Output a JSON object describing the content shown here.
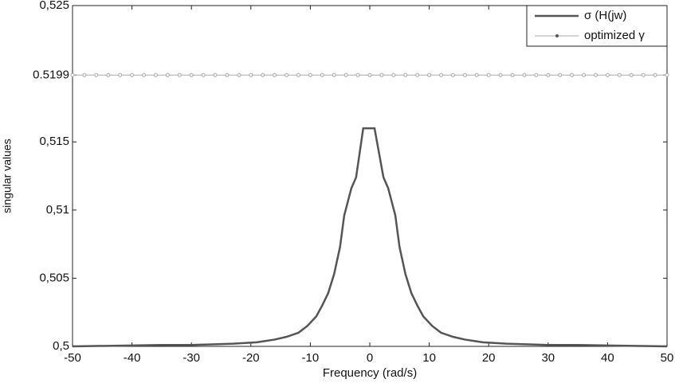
{
  "chart_data": {
    "type": "line",
    "xlabel": "Frequency (rad/s)",
    "ylabel": "singular values",
    "xlim": [
      -50,
      50
    ],
    "xticks": [
      -50,
      -40,
      -30,
      -20,
      -10,
      0,
      10,
      20,
      30,
      40,
      50
    ],
    "ylim": [
      0.5,
      0.525
    ],
    "yticks": [
      {
        "value": 0.5,
        "label": "0,5"
      },
      {
        "value": 0.505,
        "label": "0,505"
      },
      {
        "value": 0.51,
        "label": "0,51"
      },
      {
        "value": 0.515,
        "label": "0,515"
      },
      0.5199,
      {
        "value": 0.525,
        "label": "0,525"
      }
    ],
    "legend": "upper right",
    "series": [
      {
        "name": "σ (H(jw)",
        "color": "#555555",
        "x": [
          -50,
          -35,
          -30,
          -23,
          -19,
          -16,
          -14,
          -12,
          -10.5,
          -9,
          -8,
          -7,
          -6,
          -5,
          -4.3,
          -3.1,
          -2.3,
          -1.1,
          0.8,
          2.3,
          3.1,
          4.3,
          5,
          6,
          7,
          8,
          9,
          10.5,
          12,
          14,
          16,
          19,
          23,
          30,
          35,
          50
        ],
        "values": [
          0.5,
          0.5001,
          0.5001,
          0.5002,
          0.5003,
          0.5005,
          0.5007,
          0.501,
          0.5015,
          0.5022,
          0.503,
          0.5039,
          0.5053,
          0.5073,
          0.5096,
          0.5116,
          0.5124,
          0.516,
          0.516,
          0.5124,
          0.5116,
          0.5096,
          0.5073,
          0.5053,
          0.5039,
          0.503,
          0.5022,
          0.5015,
          0.501,
          0.5007,
          0.5005,
          0.5003,
          0.5002,
          0.5001,
          0.5001,
          0.5
        ]
      },
      {
        "name": "optimized γ",
        "color": "#aaaaaa",
        "x": [
          -50,
          -48,
          -46,
          -44,
          -42,
          -40,
          -38,
          -36,
          -34,
          -32,
          -30,
          -28,
          -26,
          -24,
          -22,
          -20,
          -18,
          -16,
          -14,
          -12,
          -10,
          -8,
          -6,
          -4,
          -2,
          0,
          2,
          4,
          6,
          8,
          10,
          12,
          14,
          16,
          18,
          20,
          22,
          24,
          26,
          28,
          30,
          32,
          34,
          36,
          38,
          40,
          42,
          44,
          46,
          48,
          50
        ],
        "values": [
          0.5199,
          0.5199,
          0.5199,
          0.5199,
          0.5199,
          0.5199,
          0.5199,
          0.5199,
          0.5199,
          0.5199,
          0.5199,
          0.5199,
          0.5199,
          0.5199,
          0.5199,
          0.5199,
          0.5199,
          0.5199,
          0.5199,
          0.5199,
          0.5199,
          0.5199,
          0.5199,
          0.5199,
          0.5199,
          0.5199,
          0.5199,
          0.5199,
          0.5199,
          0.5199,
          0.5199,
          0.5199,
          0.5199,
          0.5199,
          0.5199,
          0.5199,
          0.5199,
          0.5199,
          0.5199,
          0.5199,
          0.5199,
          0.5199,
          0.5199,
          0.5199,
          0.5199,
          0.5199,
          0.5199,
          0.5199,
          0.5199,
          0.5199,
          0.5199
        ]
      }
    ]
  }
}
